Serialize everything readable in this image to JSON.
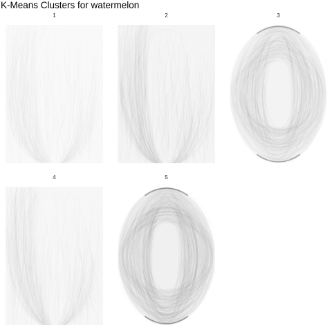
{
  "title": "K-Means Clusters for watermelon",
  "chart_data": {
    "type": "image-grid",
    "title": "K-Means Clusters for watermelon",
    "layout": {
      "rows": 2,
      "cols": 3
    },
    "clusters": [
      {
        "label": "1",
        "shape": "arch",
        "darkness": 0.18
      },
      {
        "label": "2",
        "shape": "arch",
        "darkness": 0.45
      },
      {
        "label": "3",
        "shape": "oval",
        "darkness": 0.65
      },
      {
        "label": "4",
        "shape": "arch",
        "darkness": 0.32
      },
      {
        "label": "5",
        "shape": "oval",
        "darkness": 0.85
      }
    ]
  }
}
